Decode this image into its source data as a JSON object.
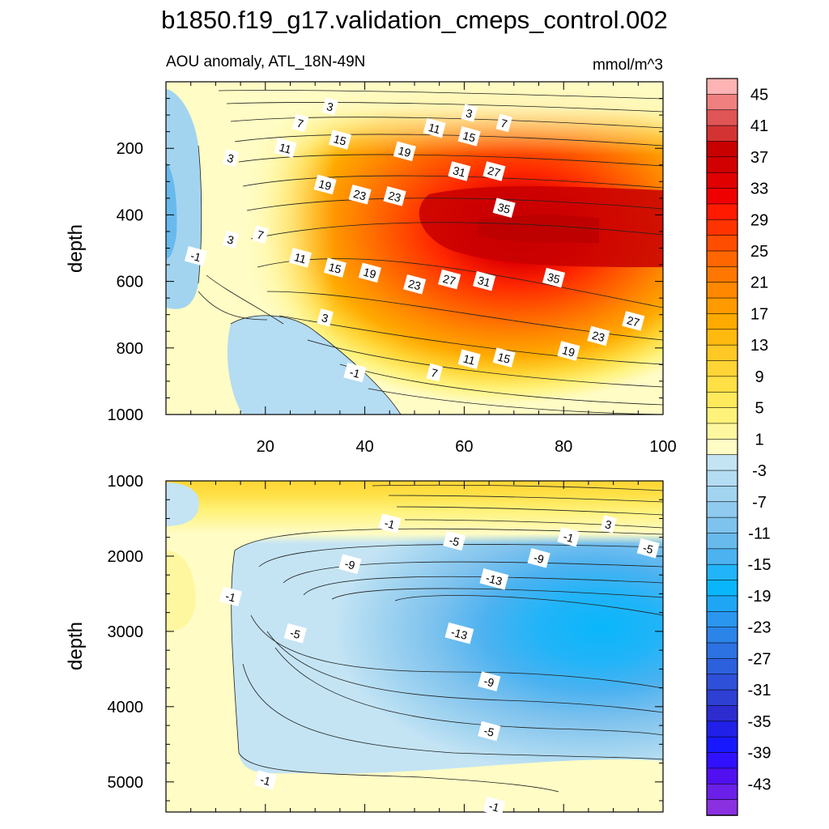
{
  "chart_data": {
    "type": "contour",
    "title": "b1850.f19_g17.validation_cmeps_control.002",
    "subtitle": "AOU anomaly, ATL_18N-49N",
    "units": "mmol/m^3",
    "colorbar": {
      "levels": [
        -45,
        -43,
        -41,
        -39,
        -37,
        -35,
        -33,
        -31,
        -29,
        -27,
        -25,
        -23,
        -21,
        -19,
        -17,
        -15,
        -13,
        -11,
        -9,
        -7,
        -5,
        -3,
        -1,
        1,
        3,
        5,
        7,
        9,
        11,
        13,
        15,
        17,
        19,
        21,
        23,
        25,
        27,
        29,
        31,
        33,
        35,
        37,
        39,
        41,
        43,
        45
      ],
      "tick_labels": [
        "45",
        "41",
        "37",
        "33",
        "29",
        "25",
        "21",
        "17",
        "13",
        "9",
        "5",
        "1",
        "-3",
        "-7",
        "-11",
        "-15",
        "-19",
        "-23",
        "-27",
        "-31",
        "-35",
        "-39",
        "-43"
      ],
      "colors_top_to_bottom": [
        "#ffb3b3",
        "#f08080",
        "#e05555",
        "#d43333",
        "#c80000",
        "#d20000",
        "#e00000",
        "#ef0000",
        "#ff1a00",
        "#ff3300",
        "#ff4d00",
        "#ff6600",
        "#ff7700",
        "#ff8800",
        "#ff9a00",
        "#ffaa00",
        "#ffba10",
        "#ffc824",
        "#ffd535",
        "#ffe045",
        "#ffea5c",
        "#fff27a",
        "#fff7a0",
        "#fffcc5",
        "#c4e4f4",
        "#b4dcf2",
        "#a2d4f0",
        "#90cbef",
        "#7ec2ee",
        "#68baed",
        "#4cb2f0",
        "#22b4f8",
        "#0ab6fb",
        "#1ea6f5",
        "#2a96ee",
        "#2b84e8",
        "#2c72e2",
        "#2d60dc",
        "#2e50d8",
        "#2e40d4",
        "#2c2ccf",
        "#2020e8",
        "#1818ff",
        "#3010ff",
        "#5010f0",
        "#6a20e8",
        "#8a30e0"
      ]
    },
    "panels": [
      {
        "name": "upper-ocean",
        "xlim": [
          0,
          100
        ],
        "ylim": [
          1000,
          0
        ],
        "ylabel": "depth",
        "x_ticks": [
          20,
          40,
          60,
          80,
          100
        ],
        "x_tick_labels": [
          "20",
          "40",
          "60",
          "80",
          "100"
        ],
        "y_ticks": [
          200,
          400,
          600,
          800,
          1000
        ],
        "y_tick_labels": [
          "200",
          "400",
          "600",
          "800",
          "1000"
        ],
        "contour_labels": [
          {
            "text": "3",
            "x": 33,
            "y": 75
          },
          {
            "text": "3",
            "x": 61,
            "y": 95
          },
          {
            "text": "7",
            "x": 27,
            "y": 125
          },
          {
            "text": "7",
            "x": 68,
            "y": 125
          },
          {
            "text": "11",
            "x": 54,
            "y": 140
          },
          {
            "text": "15",
            "x": 35,
            "y": 175
          },
          {
            "text": "15",
            "x": 61,
            "y": 165
          },
          {
            "text": "19",
            "x": 48,
            "y": 210
          },
          {
            "text": "11",
            "x": 24,
            "y": 200
          },
          {
            "text": "3",
            "x": 13,
            "y": 230
          },
          {
            "text": "31",
            "x": 59,
            "y": 270
          },
          {
            "text": "27",
            "x": 66,
            "y": 270
          },
          {
            "text": "19",
            "x": 32,
            "y": 310
          },
          {
            "text": "23",
            "x": 39,
            "y": 340
          },
          {
            "text": "23",
            "x": 46,
            "y": 345
          },
          {
            "text": "35",
            "x": 68,
            "y": 380
          },
          {
            "text": "7",
            "x": 19,
            "y": 460
          },
          {
            "text": "3",
            "x": 13,
            "y": 475
          },
          {
            "text": "-1",
            "x": 6,
            "y": 525
          },
          {
            "text": "11",
            "x": 27,
            "y": 530
          },
          {
            "text": "15",
            "x": 34,
            "y": 560
          },
          {
            "text": "19",
            "x": 41,
            "y": 575
          },
          {
            "text": "23",
            "x": 50,
            "y": 610
          },
          {
            "text": "27",
            "x": 57,
            "y": 595
          },
          {
            "text": "31",
            "x": 64,
            "y": 600
          },
          {
            "text": "35",
            "x": 78,
            "y": 590
          },
          {
            "text": "3",
            "x": 32,
            "y": 710
          },
          {
            "text": "27",
            "x": 94,
            "y": 720
          },
          {
            "text": "23",
            "x": 87,
            "y": 765
          },
          {
            "text": "19",
            "x": 81,
            "y": 810
          },
          {
            "text": "15",
            "x": 68,
            "y": 830
          },
          {
            "text": "11",
            "x": 61,
            "y": 835
          },
          {
            "text": "-1",
            "x": 38,
            "y": 875
          },
          {
            "text": "7",
            "x": 54,
            "y": 875
          }
        ]
      },
      {
        "name": "deep-ocean",
        "xlim": [
          0,
          100
        ],
        "ylim": [
          5400,
          1000
        ],
        "ylabel": "depth",
        "x_ticks": [
          20,
          40,
          60,
          80,
          100
        ],
        "x_tick_labels": [],
        "y_ticks": [
          1000,
          2000,
          3000,
          4000,
          5000
        ],
        "y_tick_labels": [
          "1000",
          "2000",
          "3000",
          "4000",
          "5000"
        ],
        "contour_labels": [
          {
            "text": "-1",
            "x": 45,
            "y": 1570
          },
          {
            "text": "3",
            "x": 89,
            "y": 1580
          },
          {
            "text": "-1",
            "x": 81,
            "y": 1750
          },
          {
            "text": "-5",
            "x": 58,
            "y": 1800
          },
          {
            "text": "-5",
            "x": 97,
            "y": 1900
          },
          {
            "text": "-9",
            "x": 75,
            "y": 2030
          },
          {
            "text": "-9",
            "x": 37,
            "y": 2110
          },
          {
            "text": "-13",
            "x": 66,
            "y": 2310
          },
          {
            "text": "-1",
            "x": 13,
            "y": 2540
          },
          {
            "text": "-5",
            "x": 26,
            "y": 3030
          },
          {
            "text": "-13",
            "x": 59,
            "y": 3030
          },
          {
            "text": "-9",
            "x": 65,
            "y": 3670
          },
          {
            "text": "-5",
            "x": 65,
            "y": 4330
          },
          {
            "text": "-1",
            "x": 20,
            "y": 4980
          },
          {
            "text": "-1",
            "x": 66,
            "y": 5330
          }
        ]
      }
    ]
  }
}
